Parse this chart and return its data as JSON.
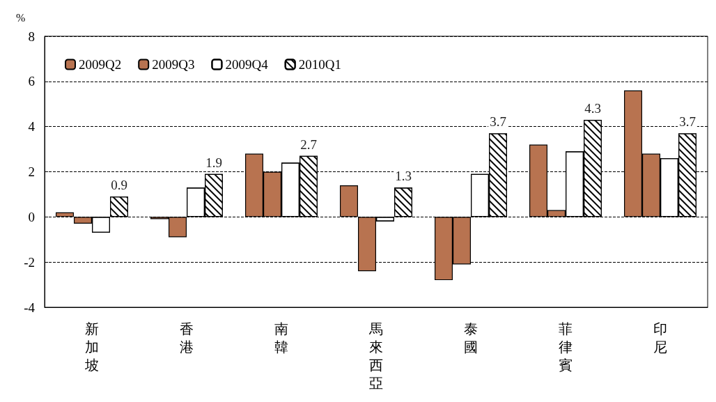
{
  "chart_data": {
    "type": "bar",
    "ylabel": "%",
    "categories": [
      "新加坡",
      "香港",
      "南韓",
      "馬來西亞",
      "泰國",
      "菲律賓",
      "印尼"
    ],
    "series": [
      {
        "name": "2009Q2",
        "color": "#b87350",
        "values": [
          0.2,
          -0.1,
          2.8,
          1.4,
          -2.8,
          3.2,
          5.6
        ]
      },
      {
        "name": "2009Q3",
        "color": "#b87350",
        "values": [
          -0.3,
          -0.9,
          2.0,
          -2.4,
          -2.1,
          0.3,
          2.8
        ]
      },
      {
        "name": "2009Q4",
        "color": "#ffffff",
        "values": [
          -0.7,
          1.3,
          2.4,
          -0.2,
          1.9,
          2.9,
          2.6
        ]
      },
      {
        "name": "2010Q1",
        "color": "#ffffff",
        "values": [
          0.9,
          1.9,
          2.7,
          1.3,
          3.7,
          4.3,
          3.7
        ],
        "value_labels": [
          "0.9",
          "1.9",
          "2.7",
          "1.3",
          "3.7",
          "4.3",
          "3.7"
        ]
      }
    ],
    "ylim": [
      -4,
      8
    ],
    "yticks": [
      -4,
      -2,
      0,
      2,
      4,
      6,
      8
    ],
    "grid": "y",
    "legend": "top left"
  }
}
